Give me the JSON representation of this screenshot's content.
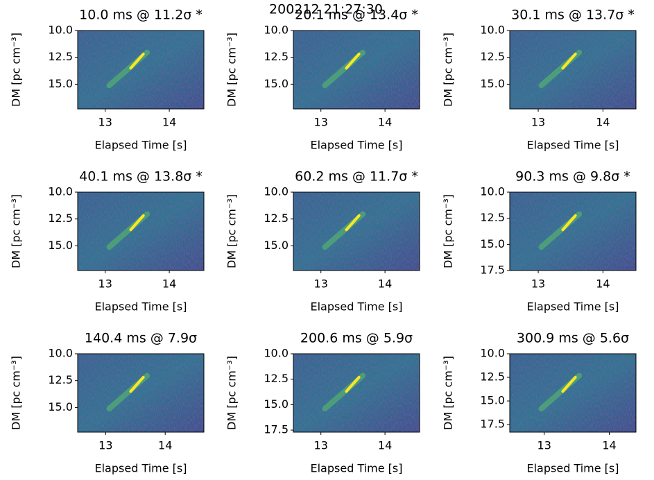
{
  "suptitle": "200212 21:27:30",
  "chart_data": [
    {
      "type": "heatmap",
      "title": "10.0 ms @ 11.2σ *",
      "xlabel": "Elapsed Time [s]",
      "ylabel": "DM [pc cm⁻³]",
      "xlim": [
        12.57,
        14.54
      ],
      "ylim": [
        10,
        17.3
      ],
      "xticks": [
        13,
        14
      ],
      "yticks": [
        {
          "value": 10,
          "label": "10.0"
        },
        {
          "value": 12.5,
          "label": "12.5"
        },
        {
          "value": 15,
          "label": "15.0"
        }
      ]
    },
    {
      "type": "heatmap",
      "title": "20.1 ms @ 13.4σ *",
      "xlabel": "Elapsed Time [s]",
      "ylabel": "DM [pc cm⁻³]",
      "xlim": [
        12.57,
        14.54
      ],
      "ylim": [
        10,
        17.3
      ],
      "xticks": [
        13,
        14
      ],
      "yticks": [
        {
          "value": 10,
          "label": "10.0"
        },
        {
          "value": 12.5,
          "label": "12.5"
        },
        {
          "value": 15,
          "label": "15.0"
        }
      ]
    },
    {
      "type": "heatmap",
      "title": "30.1 ms @ 13.7σ *",
      "xlabel": "Elapsed Time [s]",
      "ylabel": "DM [pc cm⁻³]",
      "xlim": [
        12.56,
        14.51
      ],
      "ylim": [
        10,
        17.3
      ],
      "xticks": [
        13,
        14
      ],
      "yticks": [
        {
          "value": 10,
          "label": "10.0"
        },
        {
          "value": 12.5,
          "label": "12.5"
        },
        {
          "value": 15,
          "label": "15.0"
        }
      ]
    },
    {
      "type": "heatmap",
      "title": "40.1 ms @ 13.8σ *",
      "xlabel": "Elapsed Time [s]",
      "ylabel": "DM [pc cm⁻³]",
      "xlim": [
        12.57,
        14.54
      ],
      "ylim": [
        10,
        17.3
      ],
      "xticks": [
        13,
        14
      ],
      "yticks": [
        {
          "value": 10,
          "label": "10.0"
        },
        {
          "value": 12.5,
          "label": "12.5"
        },
        {
          "value": 15,
          "label": "15.0"
        }
      ]
    },
    {
      "type": "heatmap",
      "title": "60.2 ms @ 11.7σ *",
      "xlabel": "Elapsed Time [s]",
      "ylabel": "DM [pc cm⁻³]",
      "xlim": [
        12.57,
        14.54
      ],
      "ylim": [
        10,
        17.3
      ],
      "xticks": [
        13,
        14
      ],
      "yticks": [
        {
          "value": 10,
          "label": "10.0"
        },
        {
          "value": 12.5,
          "label": "12.5"
        },
        {
          "value": 15,
          "label": "15.0"
        }
      ]
    },
    {
      "type": "heatmap",
      "title": "90.3 ms @ 9.8σ *",
      "xlabel": "Elapsed Time [s]",
      "ylabel": "DM [pc cm⁻³]",
      "xlim": [
        12.56,
        14.51
      ],
      "ylim": [
        10,
        17.5
      ],
      "xticks": [
        13,
        14
      ],
      "yticks": [
        {
          "value": 10,
          "label": "10.0"
        },
        {
          "value": 12.5,
          "label": "12.5"
        },
        {
          "value": 15,
          "label": "15.0"
        },
        {
          "value": 17.5,
          "label": "17.5"
        }
      ]
    },
    {
      "type": "heatmap",
      "title": "140.4 ms @ 7.9σ",
      "xlabel": "Elapsed Time [s]",
      "ylabel": "DM [pc cm⁻³]",
      "xlim": [
        12.53,
        14.65
      ],
      "ylim": [
        10,
        17.3
      ],
      "xticks": [
        13,
        14
      ],
      "yticks": [
        {
          "value": 10,
          "label": "10.0"
        },
        {
          "value": 12.5,
          "label": "12.5"
        },
        {
          "value": 15,
          "label": "15.0"
        }
      ]
    },
    {
      "type": "heatmap",
      "title": "200.6 ms @ 5.9σ",
      "xlabel": "Elapsed Time [s]",
      "ylabel": "DM [pc cm⁻³]",
      "xlim": [
        12.57,
        14.54
      ],
      "ylim": [
        10,
        17.7
      ],
      "xticks": [
        13,
        14
      ],
      "yticks": [
        {
          "value": 10,
          "label": "10.0"
        },
        {
          "value": 12.5,
          "label": "12.5"
        },
        {
          "value": 15,
          "label": "15.0"
        },
        {
          "value": 17.5,
          "label": "17.5"
        }
      ]
    },
    {
      "type": "heatmap",
      "title": "300.9 ms @ 5.6σ",
      "xlabel": "Elapsed Time [s]",
      "ylabel": "DM [pc cm⁻³]",
      "xlim": [
        12.47,
        14.41
      ],
      "ylim": [
        10,
        18.3
      ],
      "xticks": [
        13,
        14
      ],
      "yticks": [
        {
          "value": 10,
          "label": "10.0"
        },
        {
          "value": 12.5,
          "label": "12.5"
        },
        {
          "value": 15,
          "label": "15.0"
        },
        {
          "value": 17.5,
          "label": "17.5"
        }
      ]
    }
  ]
}
